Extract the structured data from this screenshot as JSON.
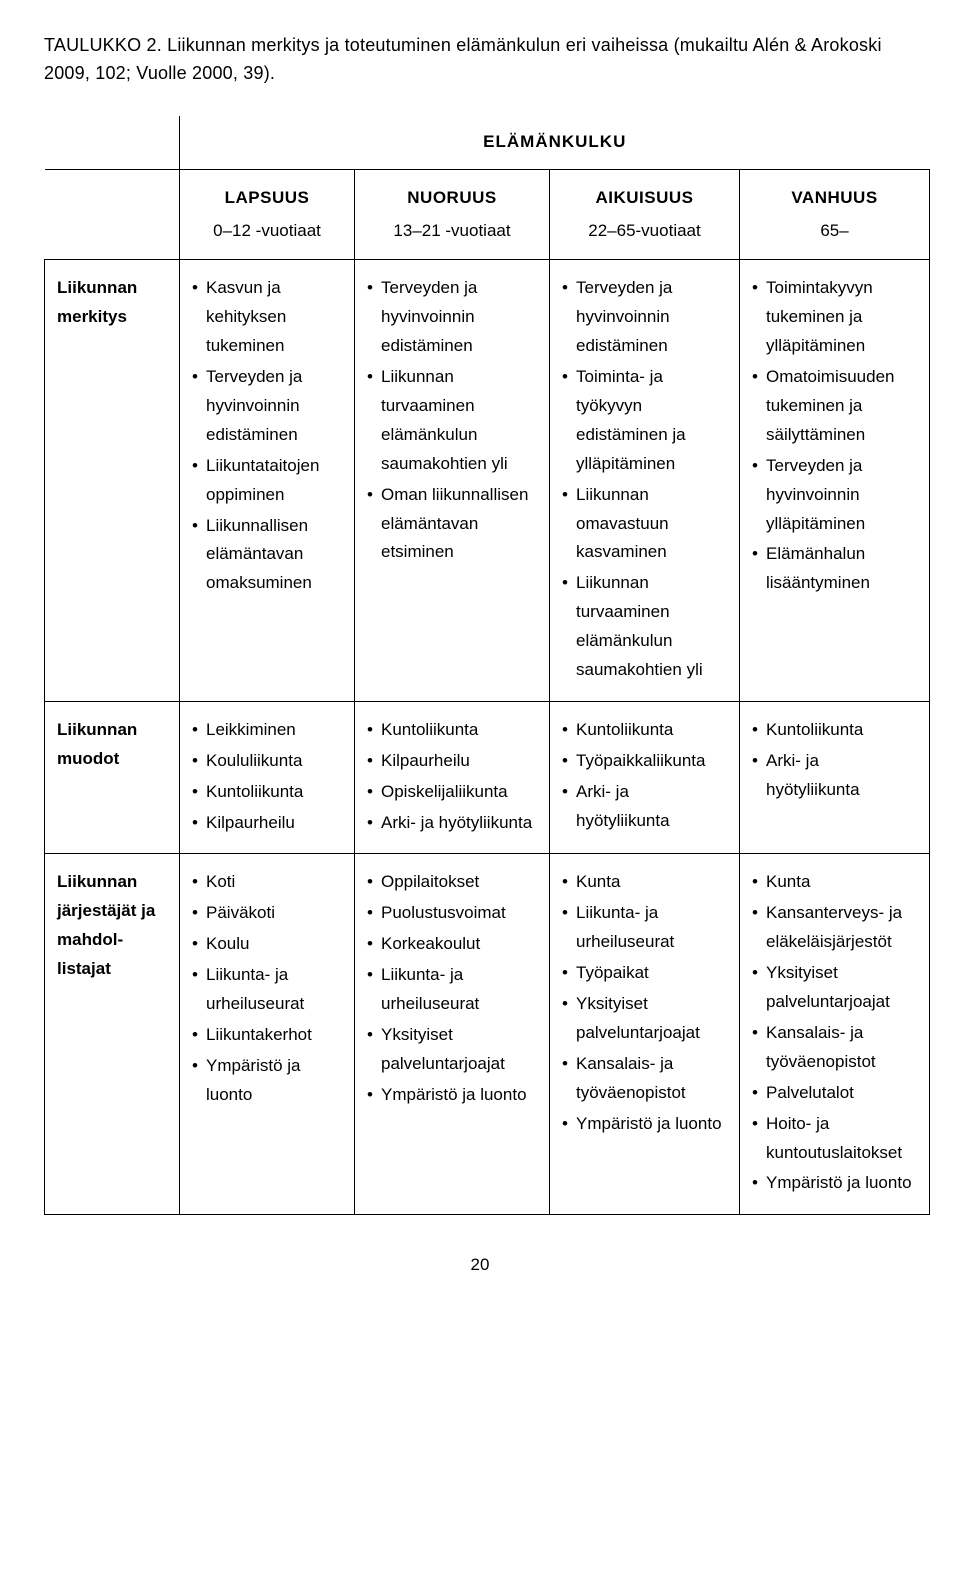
{
  "caption_prefix": "TAULUKKO 2.",
  "caption_rest": " Liikunnan merkitys ja toteutuminen elämänkulun eri vaiheissa (mukailtu Alén & Arokoski 2009, 102; Vuolle 2000, 39).",
  "super_header": "ELÄMÄNKULKU",
  "columns": [
    {
      "title": "LAPSUUS",
      "age": "0–12 -vuotiaat"
    },
    {
      "title": "NUORUUS",
      "age": "13–21 -vuotiaat"
    },
    {
      "title": "AIKUISUUS",
      "age": "22–65-vuotiaat"
    },
    {
      "title": "VANHUUS",
      "age": "65–"
    }
  ],
  "rows": [
    {
      "label": "Liikunnan merkitys",
      "cells": [
        [
          "Kasvun ja kehityksen tukeminen",
          "Terveyden ja hyvinvoinnin edistäminen",
          "Liikuntataitojen oppiminen",
          "Liikunnallisen elämäntavan omaksuminen"
        ],
        [
          "Terveyden ja hyvinvoinnin edistäminen",
          "Liikunnan turvaaminen elämänkulun saumakohtien yli",
          "Oman liikunnallisen elämäntavan etsiminen"
        ],
        [
          "Terveyden ja hyvinvoinnin edistäminen",
          "Toiminta- ja työkyvyn edistäminen ja ylläpitäminen",
          "Liikunnan omavastuun kasvaminen",
          "Liikunnan turvaaminen elämänkulun saumakohtien yli"
        ],
        [
          "Toimintakyvyn tukeminen ja ylläpitäminen",
          "Omatoimisuuden tukeminen ja säilyttäminen",
          "Terveyden ja hyvinvoinnin ylläpitäminen",
          "Elämänhalun lisääntyminen"
        ]
      ]
    },
    {
      "label": "Liikunnan muodot",
      "cells": [
        [
          "Leikkiminen",
          "Koululiikunta",
          "Kuntoliikunta",
          "Kilpaurheilu"
        ],
        [
          "Kuntoliikunta",
          "Kilpaurheilu",
          "Opiskelijaliikunta",
          "Arki- ja hyötyliikunta"
        ],
        [
          "Kuntoliikunta",
          "Työpaikkaliikunta",
          "Arki- ja hyötyliikunta"
        ],
        [
          "Kuntoliikunta",
          "Arki- ja hyötyliikunta"
        ]
      ]
    },
    {
      "label": "Liikunnan järjestäjät ja mahdol­listajat",
      "cells": [
        [
          "Koti",
          "Päiväkoti",
          "Koulu",
          "Liikunta- ja urheiluseurat",
          "Liikuntakerhot",
          "Ympäristö ja luonto"
        ],
        [
          "Oppilaitokset",
          "Puolustusvoimat",
          "Korkeakoulut",
          "Liikunta- ja urheiluseurat",
          "Yksityiset palveluntarjoajat",
          "Ympäristö ja luonto"
        ],
        [
          "Kunta",
          "Liikunta- ja urheiluseurat",
          "Työpaikat",
          "Yksityiset palveluntarjoajat",
          "Kansalais- ja työväenopistot",
          "Ympäristö ja luonto"
        ],
        [
          "Kunta",
          "Kansanterveys- ja eläkeläisjärjestöt",
          "Yksityiset palveluntarjoajat",
          "Kansalais- ja työväenopistot",
          "Palvelutalot",
          "Hoito- ja kuntoutuslaitokset",
          "Ympäristö ja luonto"
        ]
      ]
    }
  ],
  "page_number": "20"
}
